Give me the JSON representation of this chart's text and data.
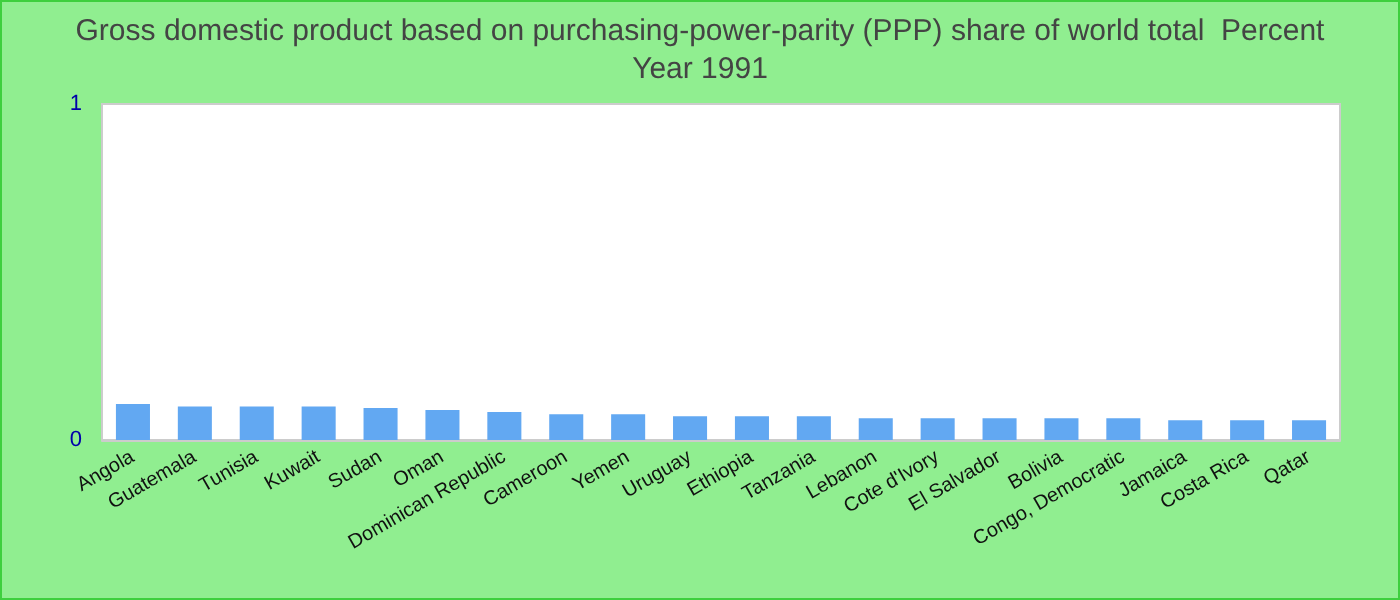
{
  "chart_data": {
    "type": "bar",
    "title": "Gross domestic product based on purchasing-power-parity (PPP) share of world total  Percent",
    "subtitle": "Year 1991",
    "categories": [
      "Angola",
      "Guatemala",
      "Tunisia",
      "Kuwait",
      "Sudan",
      "Oman",
      "Dominican Republic",
      "Cameroon",
      "Yemen",
      "Uruguay",
      "Ethiopia",
      "Tanzania",
      "Lebanon",
      "Cote d'Ivory",
      "El Salvador",
      "Bolivia",
      "Congo, Democratic",
      "Jamaica",
      "Costa Rica",
      "Qatar"
    ],
    "values": [
      0.107,
      0.1,
      0.1,
      0.1,
      0.095,
      0.089,
      0.083,
      0.077,
      0.077,
      0.071,
      0.071,
      0.071,
      0.065,
      0.065,
      0.065,
      0.065,
      0.065,
      0.059,
      0.059,
      0.059
    ],
    "color": "#62a8f2",
    "ylim": [
      0,
      1
    ],
    "yticks": [
      0,
      1
    ]
  }
}
